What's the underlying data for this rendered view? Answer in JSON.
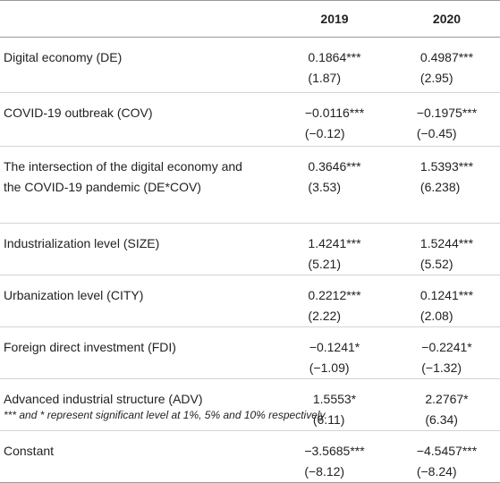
{
  "table": {
    "headers": [
      "",
      "2019",
      "2020"
    ],
    "rows": [
      {
        "label": "Digital economy (DE)",
        "y2019": [
          "0.1864***",
          "(1.87)"
        ],
        "y2020": [
          "0.4987***",
          "(2.95)"
        ]
      },
      {
        "label": "COVID-19 outbreak (COV)",
        "y2019": [
          "−0.0116***",
          "(−0.12)"
        ],
        "y2020": [
          "−0.1975***",
          "(−0.45)"
        ]
      },
      {
        "label_lines": [
          "The intersection of the digital economy and",
          "the COVID-19 pandemic (DE*COV)"
        ],
        "y2019": [
          "0.3646***",
          "(3.53)"
        ],
        "y2020": [
          "1.5393***",
          "(6.238)"
        ]
      },
      {
        "label": "Industrialization level (SIZE)",
        "y2019": [
          "1.4241***",
          "(5.21)"
        ],
        "y2020": [
          "1.5244***",
          "(5.52)"
        ]
      },
      {
        "label": "Urbanization level (CITY)",
        "y2019": [
          "0.2212***",
          "(2.22)"
        ],
        "y2020": [
          "0.1241***",
          "(2.08)"
        ]
      },
      {
        "label": "Foreign direct investment (FDI)",
        "y2019": [
          "−0.1241*",
          "(−1.09)"
        ],
        "y2020": [
          "−0.2241*",
          "(−1.32)"
        ]
      },
      {
        "label": "Advanced industrial structure (ADV)",
        "y2019": [
          "1.5553*",
          "(6.11)"
        ],
        "y2020": [
          "2.2767*",
          "(6.34)"
        ]
      },
      {
        "label": "Constant",
        "y2019": [
          "−3.5685***",
          "(−8.12)"
        ],
        "y2020": [
          "−4.5457***",
          "(−8.24)"
        ]
      }
    ]
  },
  "footnote": "*** and * represent significant level at 1%, 5% and 10% respectively."
}
